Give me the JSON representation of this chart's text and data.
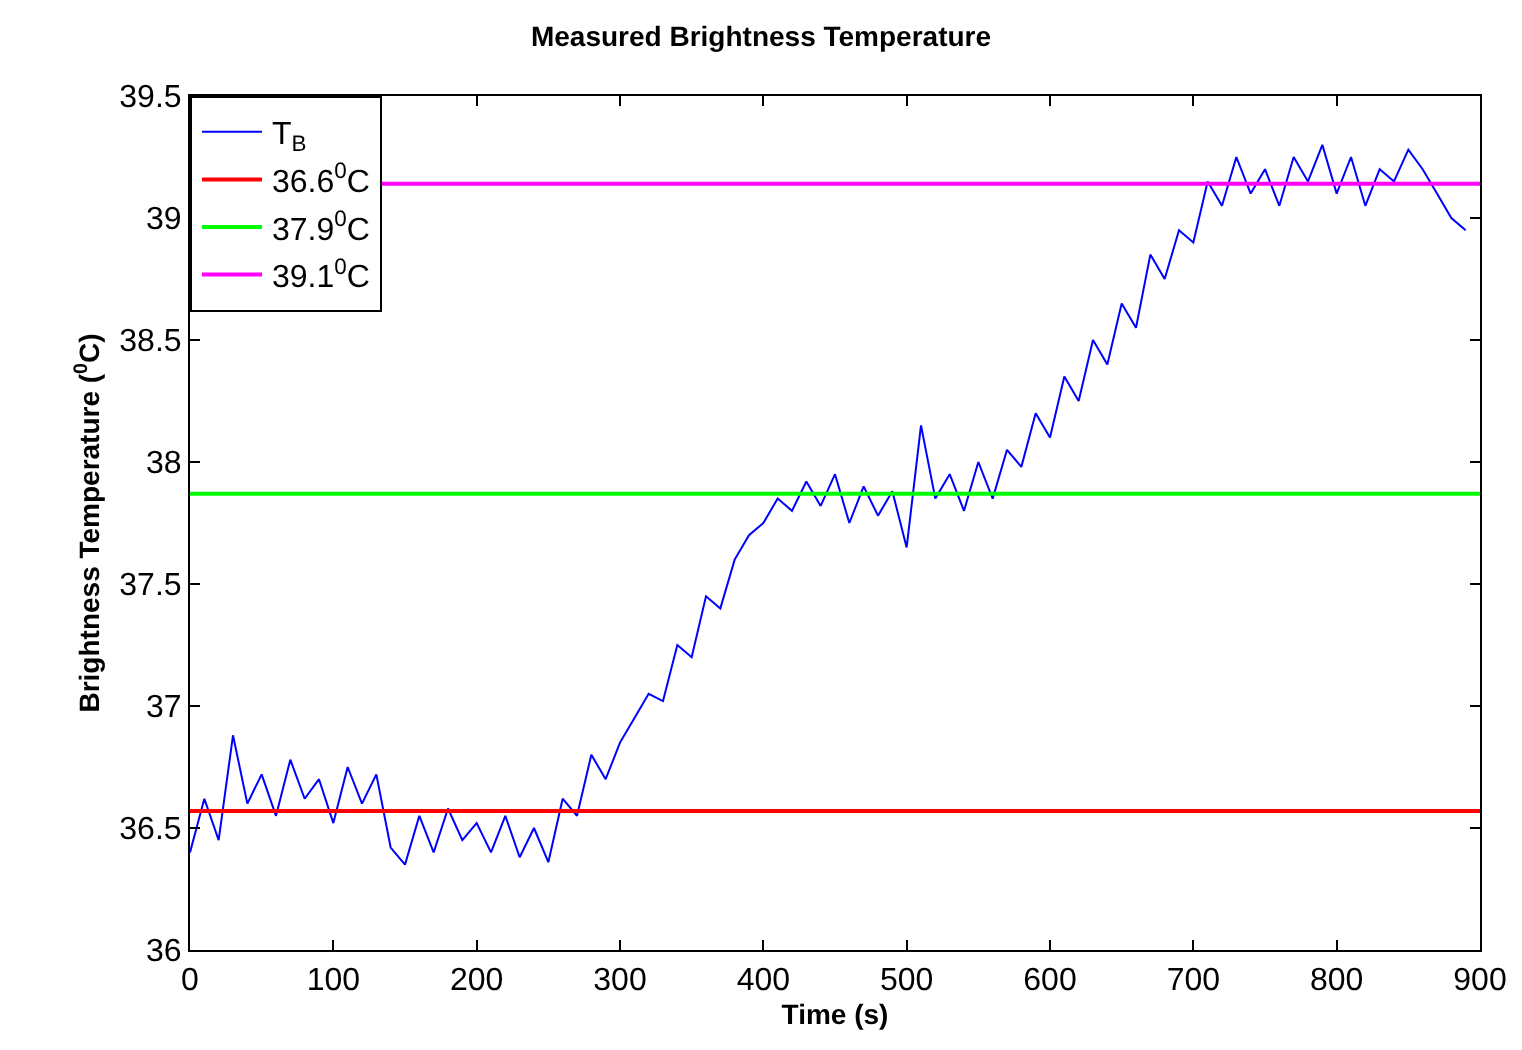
{
  "chart_data": {
    "type": "line",
    "title": "Measured Brightness Temperature",
    "xlabel": "Time (s)",
    "ylabel": "Brightness Temperature ($^{0}$C)",
    "xlim": [
      0,
      900
    ],
    "xticks": [
      0,
      100,
      200,
      300,
      400,
      500,
      600,
      700,
      800,
      900
    ],
    "ylim": [
      36,
      39.5
    ],
    "yticks": [
      36,
      36.5,
      37,
      37.5,
      38,
      38.5,
      39,
      39.5
    ],
    "grid": false,
    "legend": "top left",
    "marker": "none",
    "line_style": "solid",
    "x": [
      0,
      10,
      20,
      30,
      40,
      50,
      60,
      70,
      80,
      90,
      100,
      110,
      120,
      130,
      140,
      150,
      160,
      170,
      180,
      190,
      200,
      210,
      220,
      230,
      240,
      250,
      260,
      270,
      280,
      290,
      300,
      310,
      320,
      330,
      340,
      350,
      360,
      370,
      380,
      390,
      400,
      410,
      420,
      430,
      440,
      450,
      460,
      470,
      480,
      490,
      500,
      510,
      520,
      530,
      540,
      550,
      560,
      570,
      580,
      590,
      600,
      610,
      620,
      630,
      640,
      650,
      660,
      670,
      680,
      690,
      700,
      710,
      720,
      730,
      740,
      750,
      760,
      770,
      780,
      790,
      800,
      810,
      820,
      830,
      840,
      850,
      860,
      870,
      880,
      890
    ],
    "series": [
      {
        "name": "T$_{B}$",
        "color": "#0000ff",
        "values": [
          36.4,
          36.62,
          36.45,
          36.88,
          36.6,
          36.72,
          36.55,
          36.78,
          36.62,
          36.7,
          36.52,
          36.75,
          36.6,
          36.72,
          36.42,
          36.35,
          36.55,
          36.4,
          36.58,
          36.45,
          36.52,
          36.4,
          36.55,
          36.38,
          36.5,
          36.36,
          36.62,
          36.55,
          36.8,
          36.7,
          36.85,
          36.95,
          37.05,
          37.02,
          37.25,
          37.2,
          37.45,
          37.4,
          37.6,
          37.7,
          37.75,
          37.85,
          37.8,
          37.92,
          37.82,
          37.95,
          37.75,
          37.9,
          37.78,
          37.88,
          37.65,
          38.15,
          37.85,
          37.95,
          37.8,
          38.0,
          37.85,
          38.05,
          37.98,
          38.2,
          38.1,
          38.35,
          38.25,
          38.5,
          38.4,
          38.65,
          38.55,
          38.85,
          38.75,
          38.95,
          38.9,
          39.15,
          39.05,
          39.25,
          39.1,
          39.2,
          39.05,
          39.25,
          39.15,
          39.3,
          39.1,
          39.25,
          39.05,
          39.2,
          39.15,
          39.28,
          39.2,
          39.1,
          39.0,
          38.95
        ]
      }
    ],
    "ref_lines": [
      {
        "axis": "y",
        "value": 36.57,
        "label": "36.6$^{0}$C",
        "color": "#ff0000"
      },
      {
        "axis": "y",
        "value": 37.87,
        "label": "37.9$^{0}$C",
        "color": "#00ff00"
      },
      {
        "axis": "y",
        "value": 39.14,
        "label": "39.1$^{0}$C",
        "color": "#ff00ff"
      }
    ]
  }
}
